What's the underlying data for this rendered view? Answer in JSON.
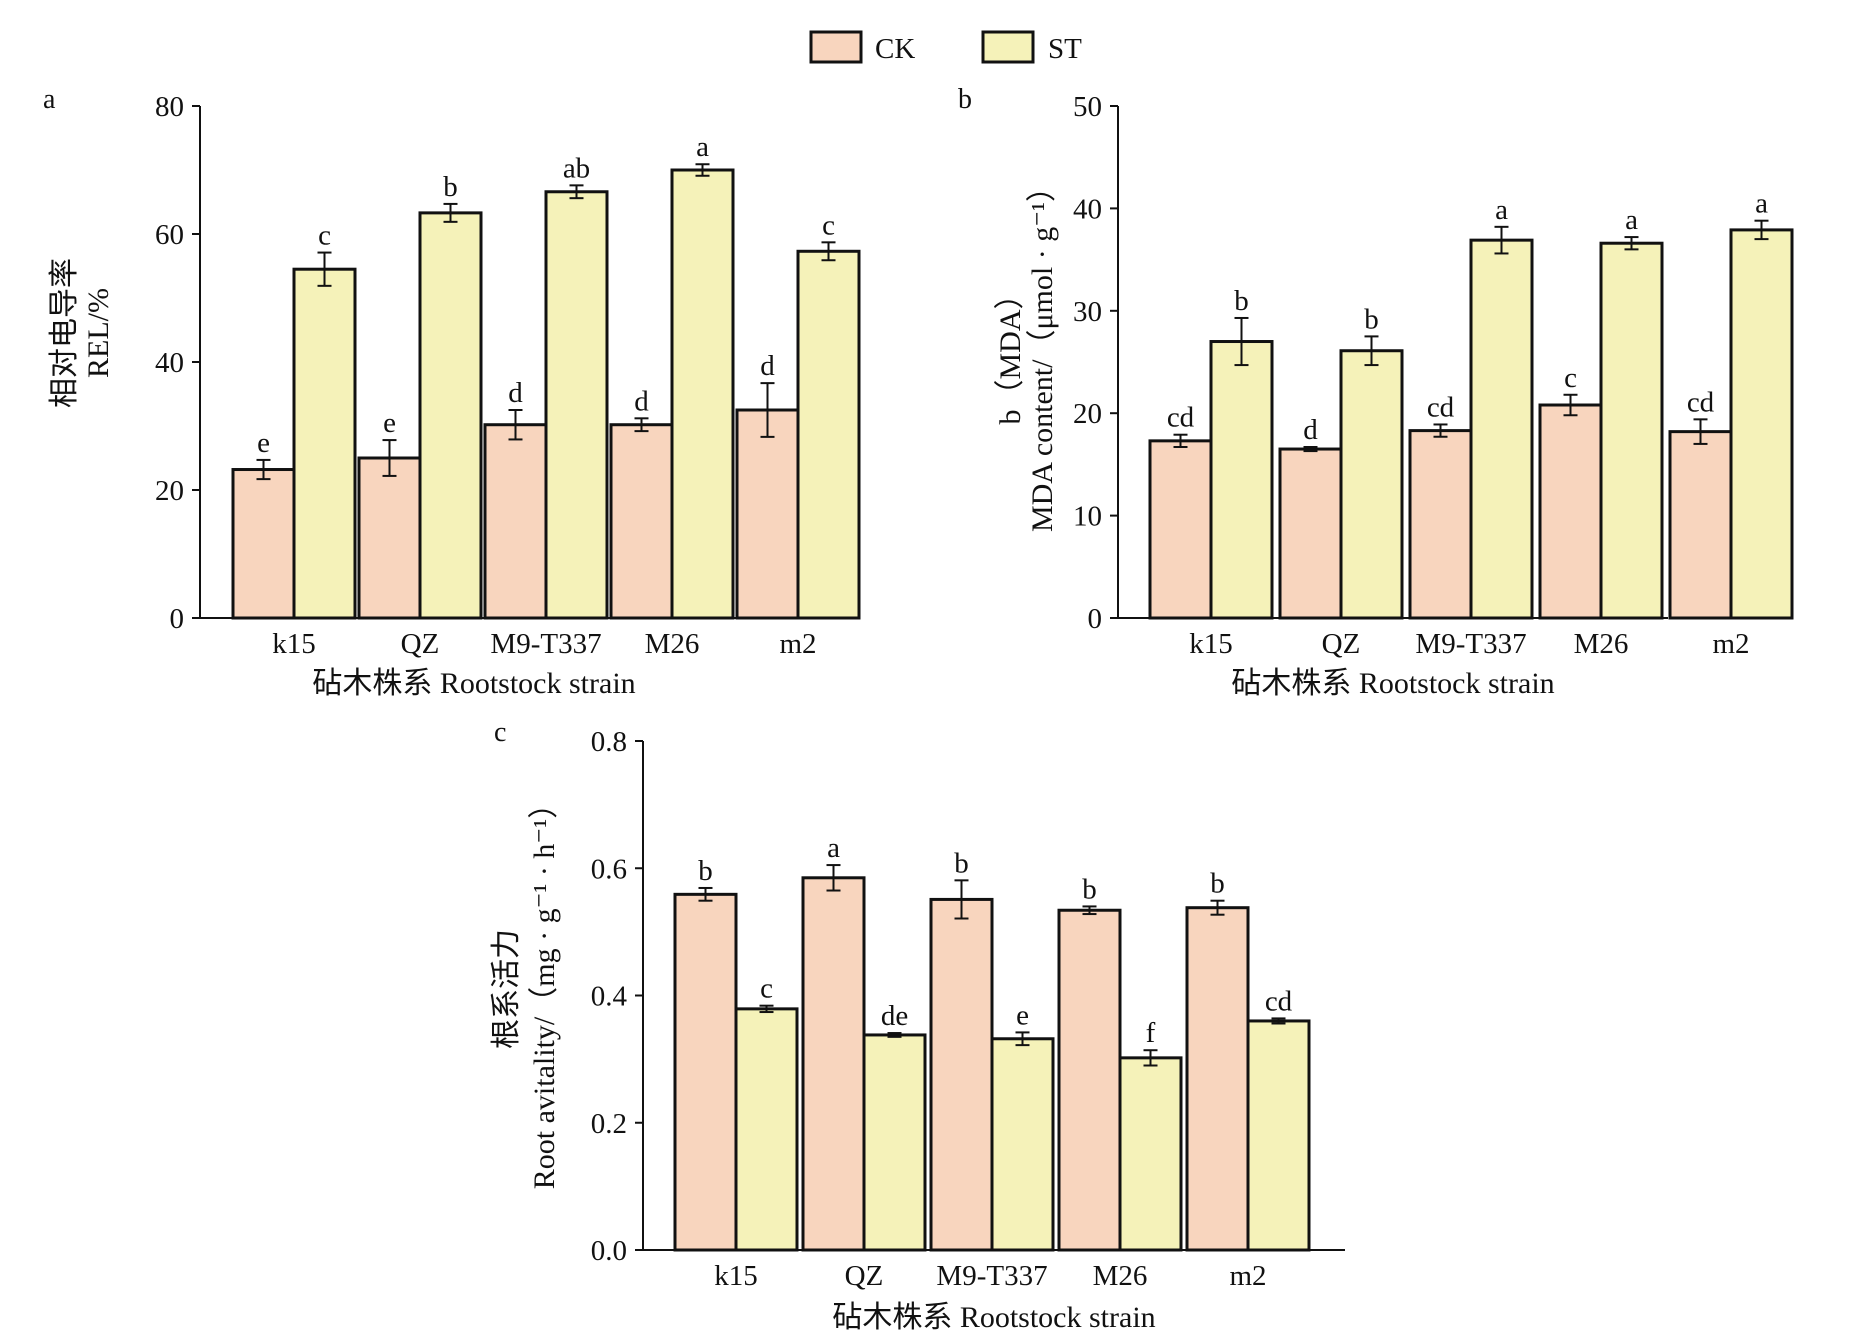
{
  "legend": [
    {
      "label": "CK",
      "color": "#f8d5be"
    },
    {
      "label": "ST",
      "color": "#f5f2b9"
    }
  ],
  "chart_data": [
    {
      "type": "bar",
      "panel": "a",
      "categories": [
        "k15",
        "QZ",
        "M9-T337",
        "M26",
        "m2"
      ],
      "series": [
        {
          "name": "CK",
          "values": [
            23.2,
            25.0,
            30.2,
            30.2,
            32.5
          ],
          "errors": [
            1.5,
            2.8,
            2.3,
            1.0,
            4.2
          ],
          "letters": [
            "e",
            "e",
            "d",
            "d",
            "d"
          ]
        },
        {
          "name": "ST",
          "values": [
            54.5,
            63.3,
            66.6,
            70.0,
            57.3
          ],
          "errors": [
            2.6,
            1.4,
            1.0,
            0.9,
            1.4
          ],
          "letters": [
            "c",
            "b",
            "ab",
            "a",
            "c"
          ]
        }
      ],
      "ylabel_lines": [
        "相对电导率",
        "REL/%"
      ],
      "xlabel": "砧木株系 Rootstock strain",
      "ylim": [
        0,
        80
      ],
      "yticks": [
        "0",
        "20",
        "40",
        "60",
        "80"
      ]
    },
    {
      "type": "bar",
      "panel": "b",
      "categories": [
        "k15",
        "QZ",
        "M9-T337",
        "M26",
        "m2"
      ],
      "series": [
        {
          "name": "CK",
          "values": [
            17.3,
            16.5,
            18.3,
            20.8,
            18.2
          ],
          "errors": [
            0.6,
            0.2,
            0.6,
            1.0,
            1.2
          ],
          "letters": [
            "cd",
            "d",
            "cd",
            "c",
            "cd"
          ]
        },
        {
          "name": "ST",
          "values": [
            27.0,
            26.1,
            36.9,
            36.6,
            37.9
          ],
          "errors": [
            2.3,
            1.4,
            1.3,
            0.6,
            0.9
          ],
          "letters": [
            "b",
            "b",
            "a",
            "a",
            "a"
          ]
        }
      ],
      "ylabel_lines": [
        "b（MDA）",
        "MDA content/（μmol · g⁻¹）"
      ],
      "xlabel": "砧木株系 Rootstock strain",
      "ylim": [
        0,
        50
      ],
      "yticks": [
        "0",
        "10",
        "20",
        "30",
        "40",
        "50"
      ]
    },
    {
      "type": "bar",
      "panel": "c",
      "categories": [
        "k15",
        "QZ",
        "M9-T337",
        "M26",
        "m2"
      ],
      "series": [
        {
          "name": "CK",
          "values": [
            0.559,
            0.585,
            0.551,
            0.534,
            0.538
          ],
          "errors": [
            0.01,
            0.02,
            0.03,
            0.006,
            0.011
          ],
          "letters": [
            "b",
            "a",
            "b",
            "b",
            "b"
          ]
        },
        {
          "name": "ST",
          "values": [
            0.379,
            0.338,
            0.332,
            0.302,
            0.36
          ],
          "errors": [
            0.005,
            0.003,
            0.01,
            0.012,
            0.004
          ],
          "letters": [
            "c",
            "de",
            "e",
            "f",
            "cd"
          ]
        }
      ],
      "ylabel_lines": [
        "根系活力",
        "Root avitality/（mg · g⁻¹ · h⁻¹）"
      ],
      "xlabel": "砧木株系 Rootstock strain",
      "ylim": [
        0,
        0.8
      ],
      "yticks": [
        "0.0",
        "0.2",
        "0.4",
        "0.6",
        "0.8"
      ]
    }
  ]
}
